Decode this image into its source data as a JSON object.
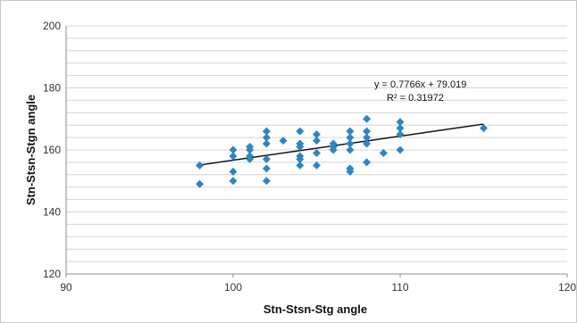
{
  "chart_data": {
    "type": "scatter",
    "title": "",
    "xlabel": "Stn-Stsn-Stg angle",
    "ylabel": "Stn-Stsn-Stgn angle",
    "xlim": [
      90,
      120
    ],
    "ylim": [
      120,
      200
    ],
    "x_ticks": [
      90,
      100,
      110,
      120
    ],
    "y_ticks": [
      120,
      140,
      160,
      180,
      200
    ],
    "grid": "horizontal",
    "y_minor_step": 4,
    "marker_color": "#2e86c1",
    "trendline_color": "#111111",
    "points": [
      {
        "x": 98,
        "y": 155
      },
      {
        "x": 98,
        "y": 149
      },
      {
        "x": 100,
        "y": 160
      },
      {
        "x": 100,
        "y": 158
      },
      {
        "x": 100,
        "y": 153
      },
      {
        "x": 100,
        "y": 150
      },
      {
        "x": 101,
        "y": 161
      },
      {
        "x": 101,
        "y": 160
      },
      {
        "x": 101,
        "y": 158
      },
      {
        "x": 101,
        "y": 157
      },
      {
        "x": 102,
        "y": 166
      },
      {
        "x": 102,
        "y": 164
      },
      {
        "x": 102,
        "y": 162
      },
      {
        "x": 102,
        "y": 157
      },
      {
        "x": 102,
        "y": 154
      },
      {
        "x": 102,
        "y": 150
      },
      {
        "x": 103,
        "y": 163
      },
      {
        "x": 104,
        "y": 166
      },
      {
        "x": 104,
        "y": 162
      },
      {
        "x": 104,
        "y": 161
      },
      {
        "x": 104,
        "y": 158
      },
      {
        "x": 104,
        "y": 157
      },
      {
        "x": 104,
        "y": 155
      },
      {
        "x": 105,
        "y": 165
      },
      {
        "x": 105,
        "y": 163
      },
      {
        "x": 105,
        "y": 159
      },
      {
        "x": 105,
        "y": 155
      },
      {
        "x": 106,
        "y": 162
      },
      {
        "x": 106,
        "y": 161
      },
      {
        "x": 106,
        "y": 160
      },
      {
        "x": 107,
        "y": 166
      },
      {
        "x": 107,
        "y": 164
      },
      {
        "x": 107,
        "y": 162
      },
      {
        "x": 107,
        "y": 160
      },
      {
        "x": 107,
        "y": 154
      },
      {
        "x": 107,
        "y": 153
      },
      {
        "x": 108,
        "y": 170
      },
      {
        "x": 108,
        "y": 166
      },
      {
        "x": 108,
        "y": 164
      },
      {
        "x": 108,
        "y": 162
      },
      {
        "x": 108,
        "y": 156
      },
      {
        "x": 109,
        "y": 159
      },
      {
        "x": 110,
        "y": 169
      },
      {
        "x": 110,
        "y": 167
      },
      {
        "x": 110,
        "y": 165
      },
      {
        "x": 110,
        "y": 160
      },
      {
        "x": 115,
        "y": 167
      }
    ],
    "trendline": {
      "type": "linear",
      "slope": 0.7766,
      "intercept": 79.019,
      "x_range": [
        98,
        115
      ],
      "equation_label": "y = 0.7766x + 79.019",
      "r2_label": "R² = 0.31972"
    }
  }
}
